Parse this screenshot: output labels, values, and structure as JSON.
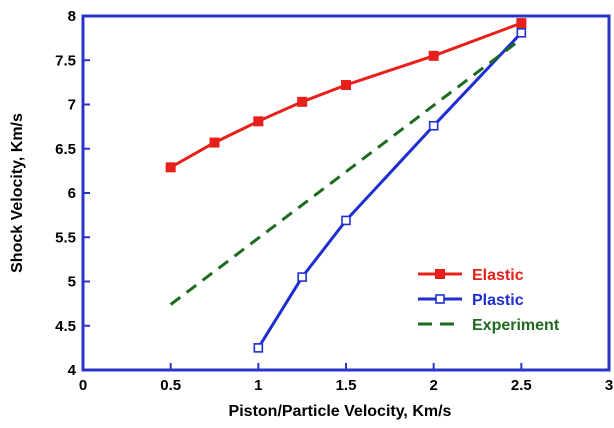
{
  "chart_data": {
    "type": "line",
    "title": "",
    "xlabel": "Piston/Particle Velocity, Km/s",
    "ylabel": "Shock Velocity, Km/s",
    "xlim": [
      0,
      3
    ],
    "ylim": [
      4,
      8
    ],
    "x_ticks": [
      0,
      0.5,
      1,
      1.5,
      2,
      2.5,
      3
    ],
    "x_tick_labels": [
      "0",
      "0.5",
      "1",
      "1.5",
      "2",
      "2.5",
      "3"
    ],
    "y_ticks": [
      4,
      4.5,
      5,
      5.5,
      6,
      6.5,
      7,
      7.5,
      8
    ],
    "y_tick_labels": [
      "4",
      "4.5",
      "5",
      "5.5",
      "6",
      "6.5",
      "7",
      "7.5",
      "8"
    ],
    "grid": false,
    "legend_position": "bottom-right",
    "series": [
      {
        "name": "Elastic",
        "color": "#e8201c",
        "line": "solid",
        "marker": "filled-square",
        "x": [
          0.5,
          0.75,
          1.0,
          1.25,
          1.5,
          2.0,
          2.5
        ],
        "y": [
          6.29,
          6.57,
          6.81,
          7.03,
          7.22,
          7.55,
          7.92
        ]
      },
      {
        "name": "Plastic",
        "color": "#1f2ed0",
        "line": "solid",
        "marker": "open-square",
        "x": [
          1.0,
          1.25,
          1.5,
          2.0,
          2.5
        ],
        "y": [
          4.25,
          5.05,
          5.69,
          6.76,
          7.81
        ]
      },
      {
        "name": "Experiment",
        "color": "#1e6b1e",
        "line": "dashed",
        "marker": "none",
        "x": [
          0.5,
          2.5
        ],
        "y": [
          4.74,
          7.74
        ]
      }
    ]
  }
}
